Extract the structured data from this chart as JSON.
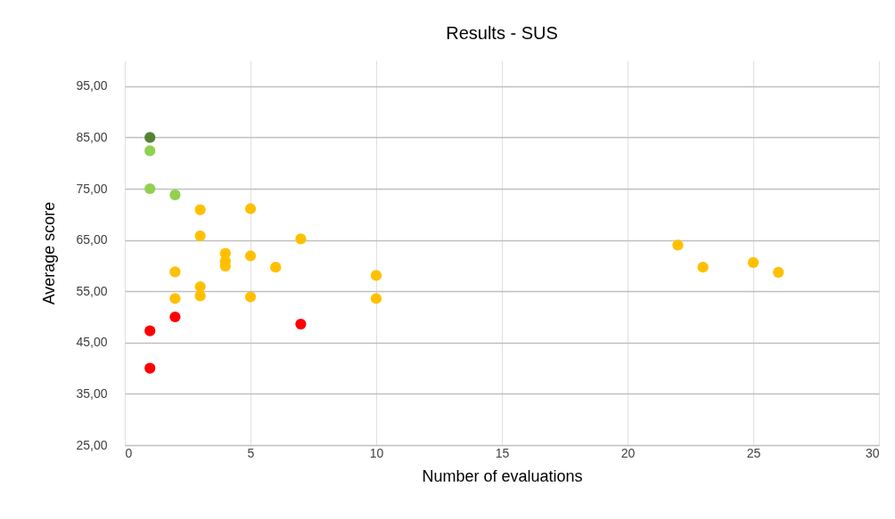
{
  "chart_data": {
    "type": "scatter",
    "title": "Results - SUS",
    "xlabel": "Number of evaluations",
    "ylabel": "Average score",
    "xlim": [
      0,
      30
    ],
    "xticks": [
      0,
      5,
      10,
      15,
      20,
      25,
      30
    ],
    "ylim": [
      25,
      100
    ],
    "yticks": [
      {
        "value": 25,
        "label": "25,00"
      },
      {
        "value": 35,
        "label": "35,00"
      },
      {
        "value": 45,
        "label": "45,00"
      },
      {
        "value": 55,
        "label": "55,00"
      },
      {
        "value": 65,
        "label": "65,00"
      },
      {
        "value": 75,
        "label": "75,00"
      },
      {
        "value": 85,
        "label": "85,00"
      },
      {
        "value": 95,
        "label": "95,00"
      }
    ],
    "grid": true,
    "marker": "circle",
    "series": [
      {
        "color": "#548235",
        "x": [
          1
        ],
        "values": [
          85.0
        ]
      },
      {
        "color": "#92d050",
        "x": [
          1,
          1,
          2
        ],
        "values": [
          82.4,
          75.0,
          73.8
        ]
      },
      {
        "color": "#ffc000",
        "x": [
          3,
          5,
          3,
          7,
          4,
          5,
          4,
          4,
          6,
          2,
          10,
          3,
          3,
          2,
          5,
          10,
          22,
          23,
          25,
          26
        ],
        "values": [
          70.9,
          71.1,
          65.8,
          65.2,
          62.4,
          61.9,
          60.9,
          59.9,
          59.7,
          58.8,
          58.1,
          55.9,
          54.1,
          53.6,
          53.9,
          53.6,
          64.0,
          59.7,
          60.6,
          58.7
        ]
      },
      {
        "color": "#ff0000",
        "x": [
          2,
          1,
          7,
          1
        ],
        "values": [
          50.0,
          47.3,
          48.6,
          40.0
        ]
      }
    ]
  }
}
